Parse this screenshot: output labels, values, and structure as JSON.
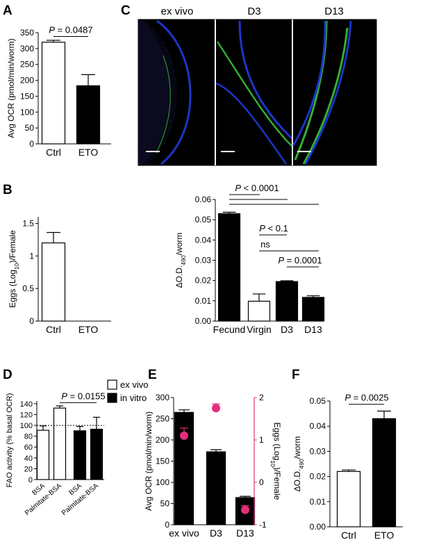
{
  "colors": {
    "black": "#000000",
    "white": "#ffffff",
    "magenta": "#e52d7a",
    "nucleus": "#1d35c8",
    "red_stain": "#d9381e",
    "green_stain": "#3bd13b"
  },
  "chart_data": [
    {
      "panel": "A",
      "type": "bar",
      "categories": [
        "Ctrl",
        "ETO"
      ],
      "values": [
        320,
        183
      ],
      "errors": [
        6,
        35
      ],
      "fills": [
        "white",
        "black"
      ],
      "ylabel": "Avg OCR (pmol/min/worm)",
      "ylim": [
        0,
        350
      ],
      "yticks": [
        0,
        50,
        100,
        150,
        200,
        250,
        300,
        350
      ],
      "annotations": [
        {
          "text": "P = 0.0487",
          "from": "Ctrl",
          "to": "ETO"
        }
      ]
    },
    {
      "panel": "B",
      "type": "bar",
      "categories": [
        "Ctrl",
        "ETO"
      ],
      "values": [
        1.2,
        0
      ],
      "errors": [
        0.16,
        0
      ],
      "fills": [
        "white",
        "white"
      ],
      "ylabel": "Eggs (Log10)/Female",
      "ylim": [
        0,
        1.6
      ],
      "yticks": [
        0,
        0.5,
        1,
        1.5
      ],
      "yticklabels": [
        "0",
        "0.5",
        "1",
        "1.5"
      ]
    },
    {
      "panel": "B2",
      "type": "bar",
      "categories": [
        "Fecund",
        "Virgin",
        "D3",
        "D13"
      ],
      "values": [
        0.053,
        0.0098,
        0.0195,
        0.0117
      ],
      "errors": [
        0.0007,
        0.0036,
        0.0004,
        0.0008
      ],
      "fills": [
        "black",
        "white",
        "black",
        "black"
      ],
      "ylabel": "ΔO.D.490/worm",
      "ylim": [
        0,
        0.06
      ],
      "yticks": [
        0,
        0.01,
        0.02,
        0.03,
        0.04,
        0.05,
        0.06
      ],
      "yticklabels": [
        "0.00",
        "0.01",
        "0.02",
        "0.03",
        "0.04",
        "0.05",
        "0.06"
      ],
      "annotations": [
        {
          "text": "P < 0.0001"
        },
        {
          "text": "P < 0.1"
        },
        {
          "text": "ns"
        },
        {
          "text": "P = 0.0001"
        }
      ]
    },
    {
      "panel": "D",
      "type": "bar",
      "categories": [
        "BSA",
        "Palmitate-BSA",
        "BSA",
        "Palmitate-BSA"
      ],
      "values": [
        91,
        132,
        90,
        93
      ],
      "errors": [
        8,
        4,
        8,
        22
      ],
      "fills": [
        "white",
        "white",
        "black",
        "black"
      ],
      "ylabel": "FAO activity (% basal OCR)",
      "ylim": [
        0,
        145
      ],
      "yticks": [
        0,
        20,
        40,
        60,
        80,
        100,
        120,
        140
      ],
      "reference_line": 100,
      "legend": [
        {
          "label": "ex vivo",
          "fill": "white"
        },
        {
          "label": "in vitro",
          "fill": "black"
        }
      ],
      "legend_position": "top-right",
      "annotations": [
        {
          "text": "P = 0.0155"
        }
      ]
    },
    {
      "panel": "E",
      "type": "bar",
      "categories": [
        "ex vivo",
        "D3",
        "D13"
      ],
      "values": [
        265,
        172,
        64
      ],
      "errors": [
        6,
        5,
        3
      ],
      "ylabel": "Avg OCR (pmol/min/worm)",
      "ylim": [
        0,
        300
      ],
      "yticks": [
        0,
        50,
        100,
        150,
        200,
        250,
        300
      ],
      "secondary_axis": {
        "ylabel": "Eggs (Log10)/Female",
        "ylim": [
          -1,
          2
        ],
        "yticks": [
          -1,
          0,
          1,
          2
        ],
        "points": [
          1.1,
          1.75,
          -0.65
        ],
        "errors": [
          0.18,
          0.1,
          0.1
        ],
        "color": "magenta"
      }
    },
    {
      "panel": "F",
      "type": "bar",
      "categories": [
        "Ctrl",
        "ETO"
      ],
      "values": [
        0.022,
        0.043
      ],
      "errors": [
        0.0006,
        0.003
      ],
      "fills": [
        "white",
        "black"
      ],
      "ylabel": "ΔO.D.490/worm",
      "ylim": [
        0,
        0.05
      ],
      "yticks": [
        0,
        0.01,
        0.02,
        0.03,
        0.04,
        0.05
      ],
      "yticklabels": [
        "0.00",
        "0.01",
        "0.02",
        "0.03",
        "0.04",
        "0.05"
      ],
      "annotations": [
        {
          "text": "P = 0.0025",
          "from": "Ctrl",
          "to": "ETO"
        }
      ]
    }
  ],
  "panel_labels": {
    "A": "A",
    "B": "B",
    "C": "C",
    "D": "D",
    "E": "E",
    "F": "F"
  },
  "microscopy": {
    "titles": [
      "ex vivo",
      "D3",
      "D13"
    ],
    "stains": [
      "red",
      "green",
      "blue"
    ]
  }
}
